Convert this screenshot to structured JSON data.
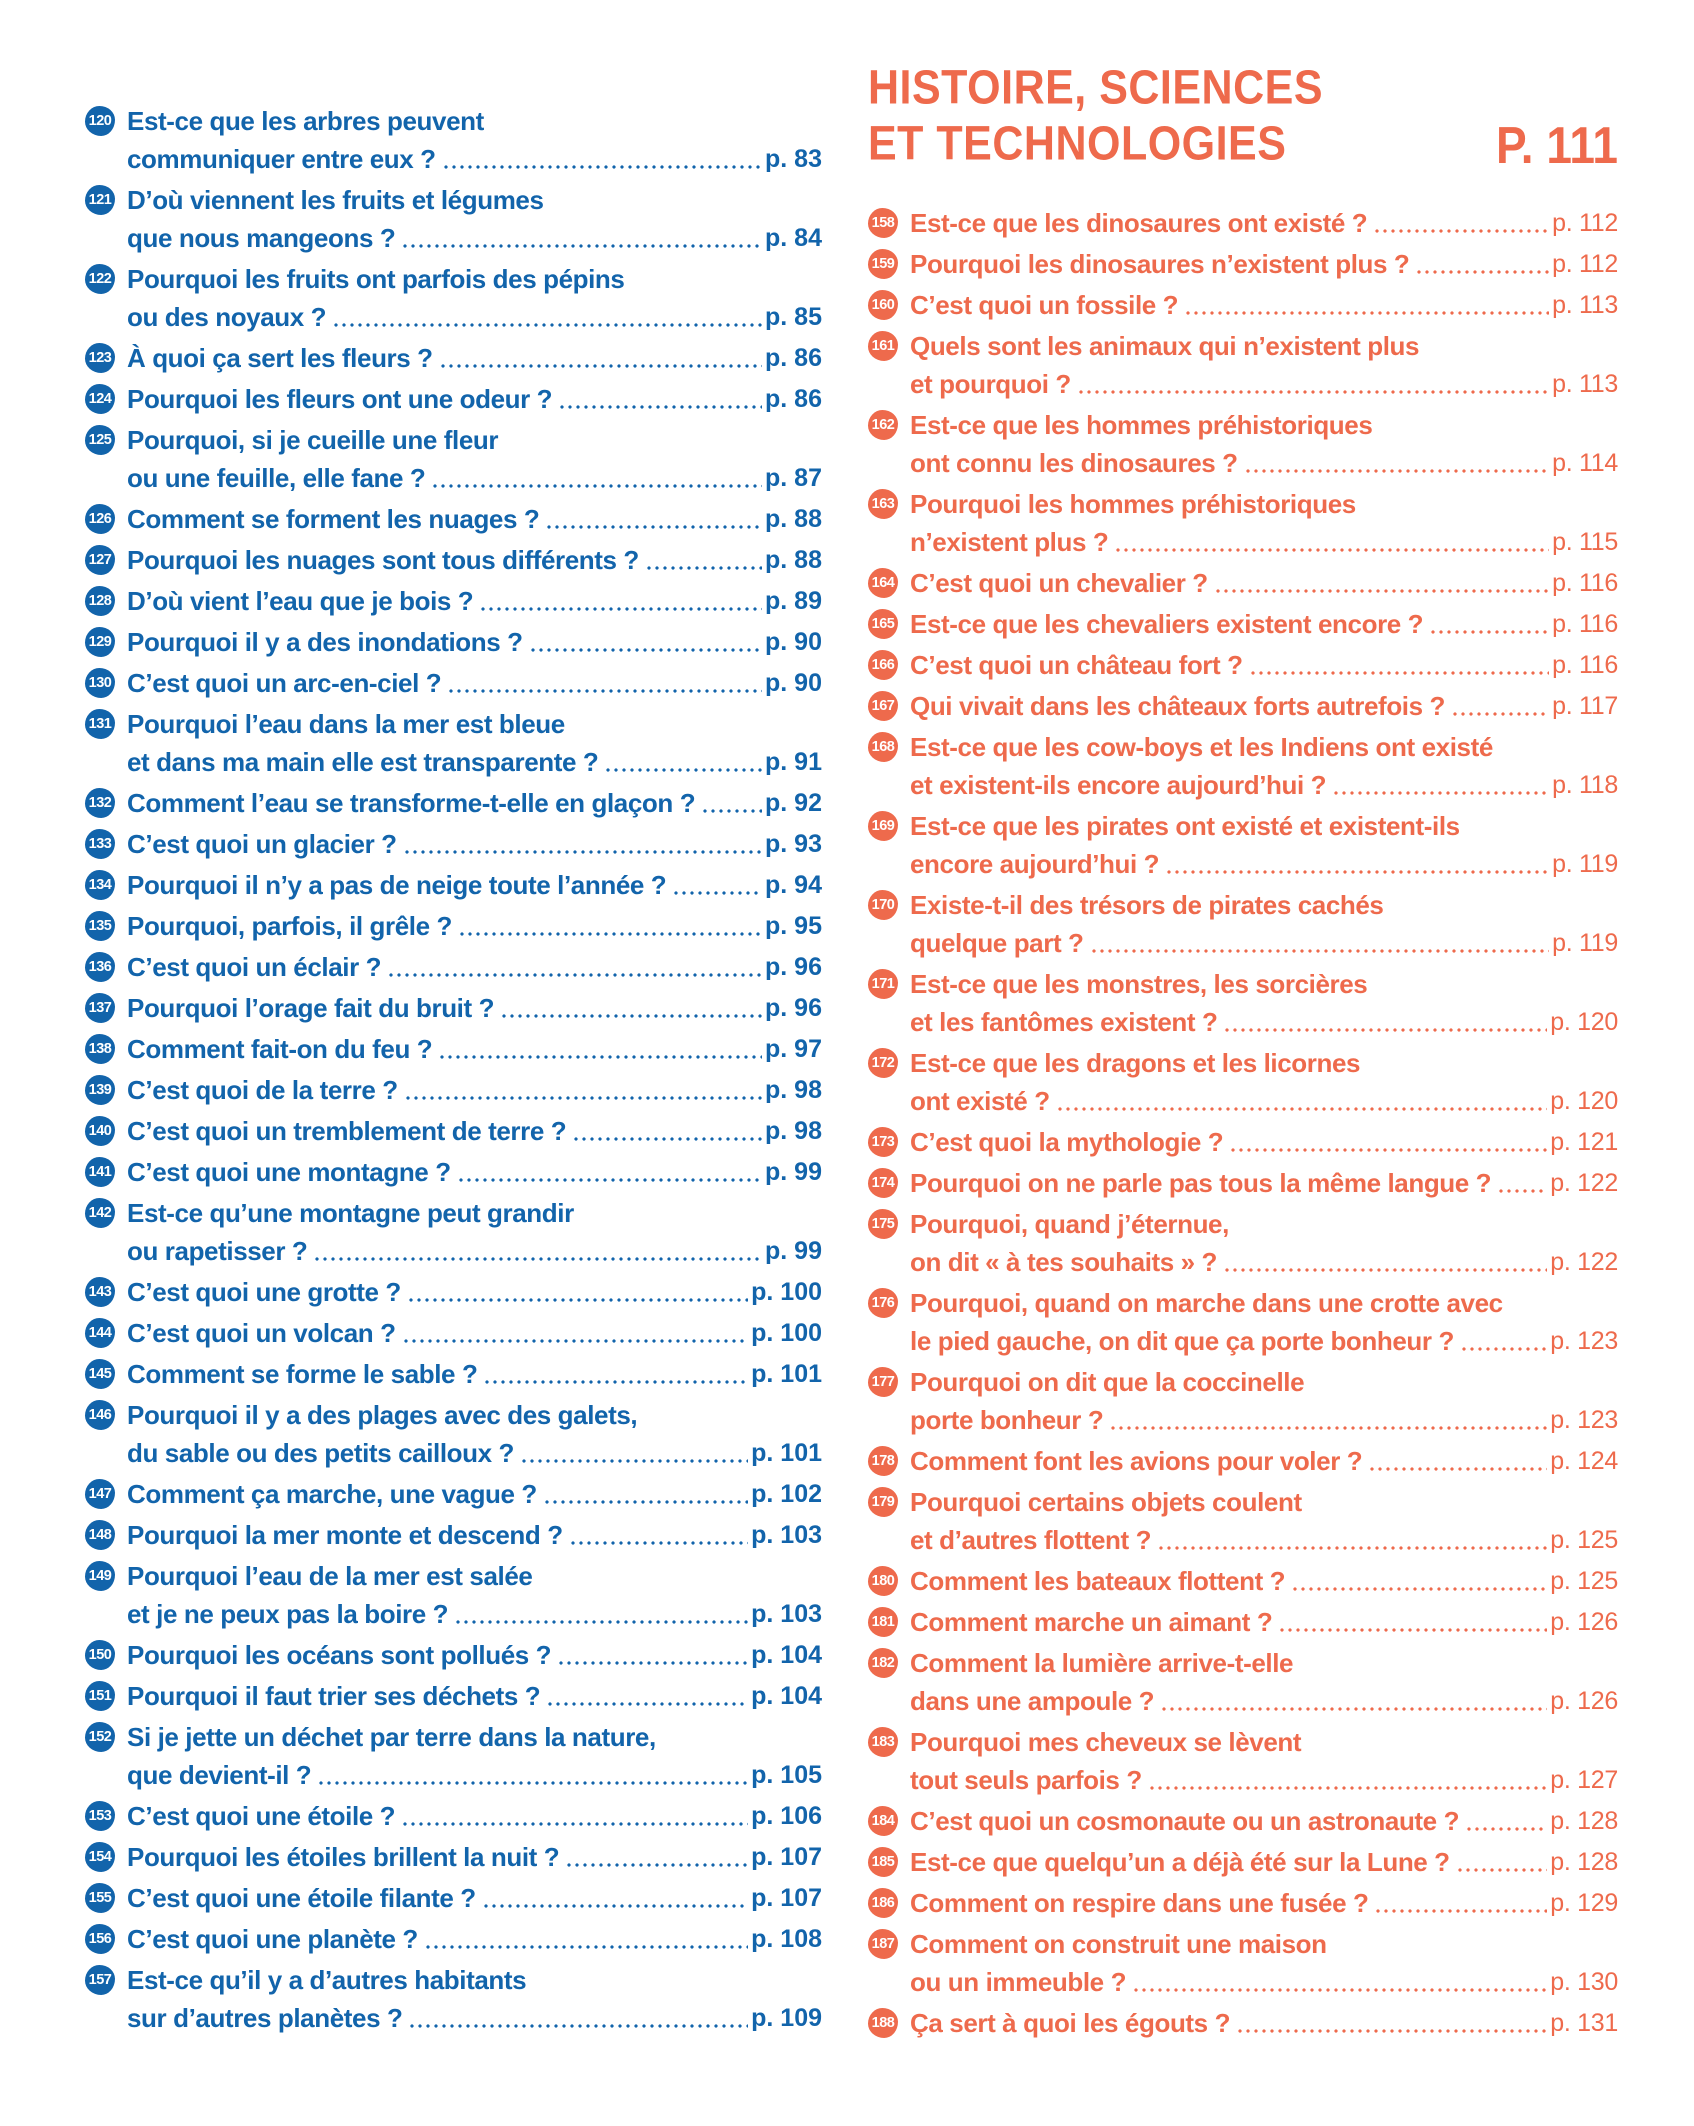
{
  "colors": {
    "blue": "#1264ab",
    "orange": "#ee6a4c"
  },
  "left_column": {
    "items": [
      {
        "num": "120",
        "lines": [
          "Est-ce que les arbres peuvent",
          "communiquer entre eux ?"
        ],
        "page": "p. 83"
      },
      {
        "num": "121",
        "lines": [
          "D’où viennent les fruits et légumes",
          "que nous mangeons ?"
        ],
        "page": "p. 84"
      },
      {
        "num": "122",
        "lines": [
          "Pourquoi les fruits ont parfois des pépins",
          "ou des noyaux ?"
        ],
        "page": "p. 85"
      },
      {
        "num": "123",
        "lines": [
          "À quoi ça sert les fleurs ?"
        ],
        "page": "p. 86"
      },
      {
        "num": "124",
        "lines": [
          "Pourquoi les fleurs ont une odeur ?"
        ],
        "page": "p. 86"
      },
      {
        "num": "125",
        "lines": [
          "Pourquoi, si je cueille une fleur",
          "ou une feuille, elle fane ?"
        ],
        "page": "p. 87"
      },
      {
        "num": "126",
        "lines": [
          "Comment se forment les nuages ?"
        ],
        "page": "p. 88"
      },
      {
        "num": "127",
        "lines": [
          "Pourquoi les nuages sont tous différents ?"
        ],
        "page": "p. 88"
      },
      {
        "num": "128",
        "lines": [
          "D’où vient l’eau que je bois ?"
        ],
        "page": "p. 89"
      },
      {
        "num": "129",
        "lines": [
          "Pourquoi il y a des inondations ?"
        ],
        "page": "p. 90"
      },
      {
        "num": "130",
        "lines": [
          "C’est quoi un arc-en-ciel ?"
        ],
        "page": "p. 90"
      },
      {
        "num": "131",
        "lines": [
          "Pourquoi l’eau dans la mer est bleue",
          "et dans ma main elle est transparente ?"
        ],
        "page": "p. 91"
      },
      {
        "num": "132",
        "lines": [
          "Comment l’eau se transforme-t-elle en glaçon ?"
        ],
        "page": "p. 92"
      },
      {
        "num": "133",
        "lines": [
          "C’est quoi un glacier ?"
        ],
        "page": "p. 93"
      },
      {
        "num": "134",
        "lines": [
          "Pourquoi il n’y a pas de neige toute l’année ?"
        ],
        "page": "p. 94"
      },
      {
        "num": "135",
        "lines": [
          "Pourquoi, parfois, il grêle ?"
        ],
        "page": "p. 95"
      },
      {
        "num": "136",
        "lines": [
          "C’est quoi un éclair ?"
        ],
        "page": "p. 96"
      },
      {
        "num": "137",
        "lines": [
          "Pourquoi l’orage fait du bruit ?"
        ],
        "page": "p. 96"
      },
      {
        "num": "138",
        "lines": [
          "Comment fait-on du feu ?"
        ],
        "page": "p. 97"
      },
      {
        "num": "139",
        "lines": [
          "C’est quoi de la terre ?"
        ],
        "page": "p. 98"
      },
      {
        "num": "140",
        "lines": [
          "C’est quoi un tremblement de terre ?"
        ],
        "page": "p. 98"
      },
      {
        "num": "141",
        "lines": [
          "C’est quoi une montagne ?"
        ],
        "page": "p. 99"
      },
      {
        "num": "142",
        "lines": [
          "Est-ce qu’une montagne peut grandir",
          "ou rapetisser ?"
        ],
        "page": "p. 99"
      },
      {
        "num": "143",
        "lines": [
          "C’est quoi une grotte ?"
        ],
        "page": "p. 100"
      },
      {
        "num": "144",
        "lines": [
          "C’est quoi un volcan ?"
        ],
        "page": "p. 100"
      },
      {
        "num": "145",
        "lines": [
          "Comment se forme le sable ?"
        ],
        "page": "p. 101"
      },
      {
        "num": "146",
        "lines": [
          "Pourquoi il y a des plages avec des galets,",
          "du sable ou des petits cailloux ?"
        ],
        "page": "p. 101"
      },
      {
        "num": "147",
        "lines": [
          "Comment ça marche, une vague ?"
        ],
        "page": "p. 102"
      },
      {
        "num": "148",
        "lines": [
          "Pourquoi la mer monte et descend ?"
        ],
        "page": "p. 103"
      },
      {
        "num": "149",
        "lines": [
          "Pourquoi l’eau de la mer est salée",
          "et je ne peux pas la boire ?"
        ],
        "page": "p. 103"
      },
      {
        "num": "150",
        "lines": [
          "Pourquoi les océans sont pollués ?"
        ],
        "page": "p. 104"
      },
      {
        "num": "151",
        "lines": [
          "Pourquoi il faut trier ses déchets ?"
        ],
        "page": "p. 104"
      },
      {
        "num": "152",
        "lines": [
          "Si je jette un déchet par terre dans la nature,",
          "que devient-il ?"
        ],
        "page": "p. 105"
      },
      {
        "num": "153",
        "lines": [
          "C’est quoi une étoile ?"
        ],
        "page": "p. 106"
      },
      {
        "num": "154",
        "lines": [
          "Pourquoi les étoiles brillent la nuit ?"
        ],
        "page": "p. 107"
      },
      {
        "num": "155",
        "lines": [
          "C’est quoi une étoile filante ?"
        ],
        "page": "p. 107"
      },
      {
        "num": "156",
        "lines": [
          "C’est quoi une planète ?"
        ],
        "page": "p. 108"
      },
      {
        "num": "157",
        "lines": [
          "Est-ce qu’il y a d’autres habitants",
          "sur d’autres planètes ?"
        ],
        "page": "p. 109"
      }
    ]
  },
  "right_column": {
    "header": {
      "line1": "HISTOIRE, SCIENCES",
      "line2": "ET TECHNOLOGIES",
      "page": "P. 111"
    },
    "items": [
      {
        "num": "158",
        "lines": [
          "Est-ce que les dinosaures ont existé ?"
        ],
        "page": "p. 112"
      },
      {
        "num": "159",
        "lines": [
          "Pourquoi les dinosaures n’existent plus ?"
        ],
        "page": "p. 112"
      },
      {
        "num": "160",
        "lines": [
          "C’est quoi un fossile ?"
        ],
        "page": "p. 113"
      },
      {
        "num": "161",
        "lines": [
          "Quels sont les animaux qui n’existent plus",
          "et pourquoi ?"
        ],
        "page": "p. 113"
      },
      {
        "num": "162",
        "lines": [
          "Est-ce que les hommes préhistoriques",
          "ont connu les dinosaures ?"
        ],
        "page": "p. 114"
      },
      {
        "num": "163",
        "lines": [
          "Pourquoi les hommes préhistoriques",
          "n’existent plus ?"
        ],
        "page": "p. 115"
      },
      {
        "num": "164",
        "lines": [
          "C’est quoi un chevalier ?"
        ],
        "page": "p. 116"
      },
      {
        "num": "165",
        "lines": [
          "Est-ce que les chevaliers existent encore ?"
        ],
        "page": "p. 116"
      },
      {
        "num": "166",
        "lines": [
          "C’est quoi un château fort ?"
        ],
        "page": "p. 116"
      },
      {
        "num": "167",
        "lines": [
          "Qui vivait dans les châteaux forts autrefois ?"
        ],
        "page": "p. 117"
      },
      {
        "num": "168",
        "lines": [
          "Est-ce que les cow-boys et les Indiens ont existé",
          "et existent-ils encore aujourd’hui ?"
        ],
        "page": "p. 118"
      },
      {
        "num": "169",
        "lines": [
          "Est-ce que les pirates ont existé et existent-ils",
          "encore aujourd’hui ?"
        ],
        "page": "p. 119"
      },
      {
        "num": "170",
        "lines": [
          "Existe-t-il des trésors de pirates cachés",
          "quelque part ?"
        ],
        "page": "p. 119"
      },
      {
        "num": "171",
        "lines": [
          "Est-ce que les monstres, les sorcières",
          "et les fantômes existent ?"
        ],
        "page": "p. 120"
      },
      {
        "num": "172",
        "lines": [
          "Est-ce que les dragons et les licornes",
          "ont existé ?"
        ],
        "page": "p. 120"
      },
      {
        "num": "173",
        "lines": [
          "C’est quoi la mythologie ?"
        ],
        "page": "p. 121"
      },
      {
        "num": "174",
        "lines": [
          "Pourquoi on ne parle pas tous la même langue ?"
        ],
        "page": "p. 122"
      },
      {
        "num": "175",
        "lines": [
          "Pourquoi, quand j’éternue,",
          "on dit « à tes souhaits » ?"
        ],
        "page": "p. 122"
      },
      {
        "num": "176",
        "lines": [
          "Pourquoi, quand on marche dans une crotte avec",
          "le pied gauche, on dit que ça porte bonheur ?"
        ],
        "page": "p. 123"
      },
      {
        "num": "177",
        "lines": [
          "Pourquoi on dit que la coccinelle",
          "porte bonheur ?"
        ],
        "page": "p. 123"
      },
      {
        "num": "178",
        "lines": [
          "Comment font les avions pour voler ?"
        ],
        "page": "p. 124"
      },
      {
        "num": "179",
        "lines": [
          "Pourquoi certains objets coulent",
          "et d’autres flottent ?"
        ],
        "page": "p. 125"
      },
      {
        "num": "180",
        "lines": [
          "Comment les bateaux flottent ?"
        ],
        "page": "p. 125"
      },
      {
        "num": "181",
        "lines": [
          "Comment marche un aimant ?"
        ],
        "page": "p. 126"
      },
      {
        "num": "182",
        "lines": [
          "Comment la lumière arrive-t-elle",
          "dans une ampoule ?"
        ],
        "page": "p. 126"
      },
      {
        "num": "183",
        "lines": [
          "Pourquoi mes cheveux se lèvent",
          "tout seuls parfois ?"
        ],
        "page": "p. 127"
      },
      {
        "num": "184",
        "lines": [
          "C’est quoi un cosmonaute ou un astronaute ?"
        ],
        "page": "p. 128"
      },
      {
        "num": "185",
        "lines": [
          "Est-ce que quelqu’un a déjà été sur la Lune ?"
        ],
        "page": "p. 128"
      },
      {
        "num": "186",
        "lines": [
          "Comment on respire dans une fusée ?"
        ],
        "page": "p. 129"
      },
      {
        "num": "187",
        "lines": [
          "Comment on construit une maison",
          "ou un immeuble ?"
        ],
        "page": "p. 130"
      },
      {
        "num": "188",
        "lines": [
          "Ça sert à quoi les égouts ?"
        ],
        "page": "p. 131"
      }
    ]
  }
}
